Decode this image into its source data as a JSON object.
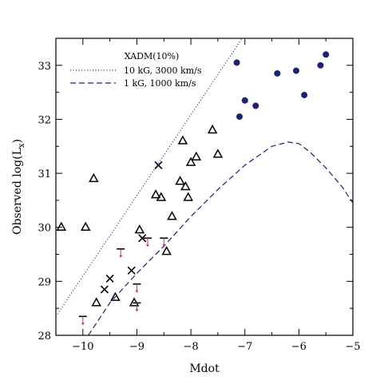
{
  "chart_data": {
    "type": "scatter",
    "xlabel": "Mdot",
    "ylabel": "Observed log(L",
    "ylabel_sub": "x",
    "ylabel_close": ")",
    "xlim": [
      -10.5,
      -5.0
    ],
    "ylim": [
      28.0,
      33.5
    ],
    "xticks": [
      -10,
      -9,
      -8,
      -7,
      -6,
      -5
    ],
    "yticks": [
      28,
      29,
      30,
      31,
      32,
      33
    ],
    "grid": false,
    "legend": {
      "placement": "top-left",
      "title": "XADM(10%)",
      "entries": [
        {
          "label": "10 kG, 3000 km/s",
          "style": "dotted",
          "color": "#1c2270"
        },
        {
          "label": "1 kG, 1000 km/s",
          "style": "dashed",
          "color": "#1c2270"
        }
      ]
    },
    "colors": {
      "circle": "#1c2270",
      "upper_limit_arrow": "#c0306a",
      "curve": "#1c2270"
    },
    "series": [
      {
        "marker": "triangle",
        "points": [
          [
            -10.4,
            30.0
          ],
          [
            -9.95,
            30.0
          ],
          [
            -9.8,
            30.9
          ],
          [
            -9.75,
            28.6
          ],
          [
            -9.4,
            28.7
          ],
          [
            -9.05,
            28.6
          ],
          [
            -8.95,
            29.95
          ],
          [
            -8.65,
            30.6
          ],
          [
            -8.55,
            30.55
          ],
          [
            -8.45,
            29.55
          ],
          [
            -8.35,
            30.2
          ],
          [
            -8.2,
            30.85
          ],
          [
            -8.15,
            31.6
          ],
          [
            -8.1,
            30.75
          ],
          [
            -8.05,
            30.55
          ],
          [
            -8.0,
            31.2
          ],
          [
            -7.9,
            31.3
          ],
          [
            -7.6,
            31.8
          ],
          [
            -7.5,
            31.35
          ]
        ]
      },
      {
        "marker": "cross",
        "points": [
          [
            -9.6,
            28.85
          ],
          [
            -9.5,
            29.05
          ],
          [
            -9.1,
            29.2
          ],
          [
            -8.9,
            29.8
          ],
          [
            -8.6,
            31.15
          ]
        ]
      },
      {
        "marker": "upper-limit",
        "points": [
          [
            -10.0,
            28.35
          ],
          [
            -9.3,
            29.6
          ],
          [
            -9.0,
            28.95
          ],
          [
            -9.0,
            28.6
          ],
          [
            -8.8,
            29.8
          ],
          [
            -8.5,
            29.8
          ]
        ]
      },
      {
        "marker": "circle",
        "points": [
          [
            -7.15,
            33.05
          ],
          [
            -7.1,
            32.05
          ],
          [
            -7.0,
            32.35
          ],
          [
            -6.8,
            32.25
          ],
          [
            -6.4,
            32.85
          ],
          [
            -6.05,
            32.9
          ],
          [
            -5.9,
            32.45
          ],
          [
            -5.6,
            33.0
          ],
          [
            -5.5,
            33.2
          ]
        ]
      }
    ],
    "curves": [
      {
        "name": "10 kG, 3000 km/s",
        "style": "dotted",
        "x": [
          -10.5,
          -7.05
        ],
        "y": [
          28.35,
          33.5
        ]
      },
      {
        "name": "1 kG, 1000 km/s",
        "style": "dashed",
        "x": [
          -9.9,
          -9.5,
          -9.0,
          -8.5,
          -8.0,
          -7.5,
          -7.0,
          -6.5,
          -6.2,
          -6.0,
          -5.8,
          -5.5,
          -5.2,
          -5.0
        ],
        "y": [
          28.0,
          28.6,
          29.15,
          29.65,
          30.2,
          30.7,
          31.15,
          31.5,
          31.58,
          31.55,
          31.4,
          31.1,
          30.75,
          30.45
        ]
      }
    ]
  }
}
